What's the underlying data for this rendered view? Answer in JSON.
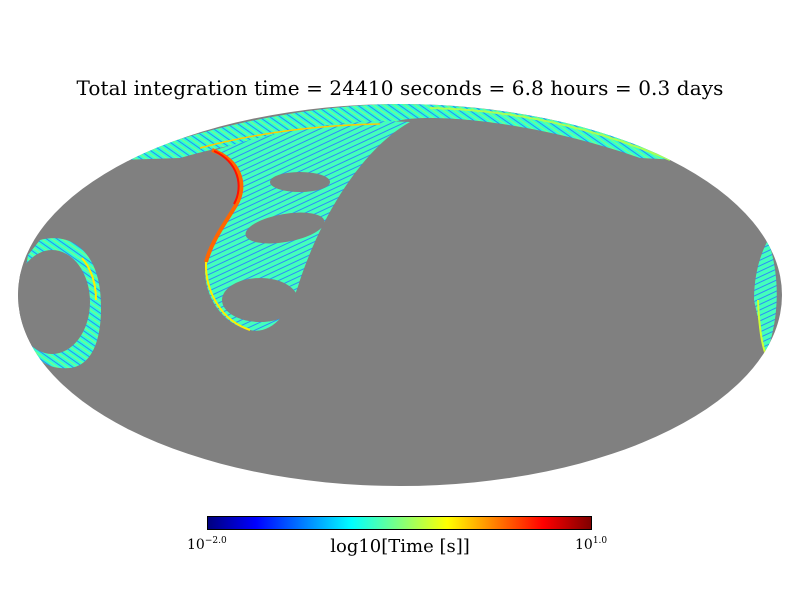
{
  "title": "Total integration time = 24410 seconds = 6.8 hours = 0.3 days",
  "colorbar": {
    "label": "log10[Time [s]]",
    "min_base": "10",
    "min_exp": "−2.0",
    "max_base": "10",
    "max_exp": "1.0",
    "colormap": [
      "#00007f",
      "#0000ff",
      "#007fff",
      "#00ffff",
      "#7fff7f",
      "#ffff00",
      "#ff7f00",
      "#ff0000",
      "#7f0000"
    ]
  },
  "colors": {
    "background_sky": "#808080",
    "page": "#ffffff"
  },
  "chart_data": {
    "type": "heatmap",
    "projection": "mollweide",
    "title": "Total integration time = 24410 seconds = 6.8 hours = 0.3 days",
    "colorbar_label": "log10[Time [s]]",
    "color_range_log10": [
      -2.0,
      1.0
    ],
    "total_integration_time_seconds": 24410,
    "total_integration_time_hours": 6.8,
    "total_integration_time_days": 0.3,
    "unobserved_color": "#808080"
  }
}
